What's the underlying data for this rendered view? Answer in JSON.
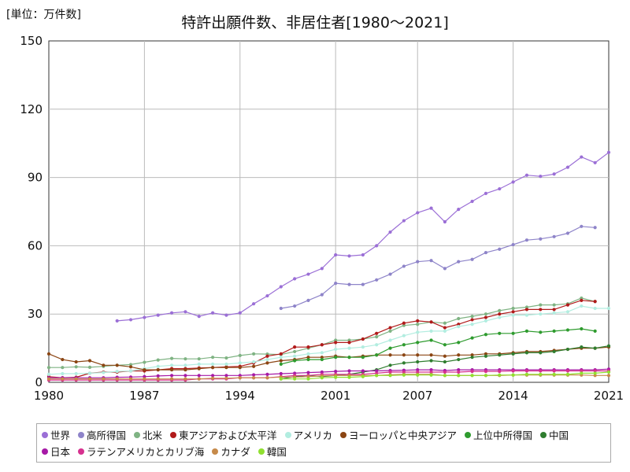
{
  "unit_label": "[単位：万件数]",
  "chart_data": {
    "type": "line",
    "title": "特許出願件数、非居住者[1980～2021]",
    "xlabel": "",
    "ylabel": "",
    "xlim": [
      1980,
      2021
    ],
    "ylim": [
      0,
      150
    ],
    "x_ticks": [
      1980,
      1987,
      1994,
      2001,
      2007,
      2014,
      2021
    ],
    "y_ticks": [
      0,
      30,
      60,
      90,
      120,
      150
    ],
    "grid": true,
    "legend_position": "bottom",
    "series": [
      {
        "name": "世界",
        "color": "#9b6fd6",
        "x": [
          1985,
          1986,
          1987,
          1988,
          1989,
          1990,
          1991,
          1992,
          1993,
          1994,
          1995,
          1996,
          1997,
          1998,
          1999,
          2000,
          2001,
          2002,
          2003,
          2004,
          2005,
          2006,
          2007,
          2008,
          2009,
          2010,
          2011,
          2012,
          2013,
          2014,
          2015,
          2016,
          2017,
          2018,
          2019,
          2020,
          2021
        ],
        "y": [
          27,
          27.5,
          28.5,
          29.5,
          30.5,
          31,
          29,
          30.5,
          29.5,
          30.5,
          34.5,
          38,
          42,
          45.5,
          47.5,
          50,
          56,
          55.5,
          56,
          60,
          66,
          71,
          74.5,
          76.5,
          70.5,
          76,
          79.5,
          83,
          85,
          88,
          91,
          90.5,
          91.5,
          94.5,
          99,
          96.5,
          101
        ]
      },
      {
        "name": "高所得国",
        "color": "#8e84c9",
        "x": [
          1997,
          1998,
          1999,
          2000,
          2001,
          2002,
          2003,
          2004,
          2005,
          2006,
          2007,
          2008,
          2009,
          2010,
          2011,
          2012,
          2013,
          2014,
          2015,
          2016,
          2017,
          2018,
          2019,
          2020
        ],
        "y": [
          32.5,
          33.5,
          36,
          38.5,
          43.5,
          43,
          43,
          45,
          47.5,
          51,
          53,
          53.5,
          50,
          53,
          54,
          57,
          58.5,
          60.5,
          62.5,
          63,
          64,
          65.5,
          68.5,
          68
        ]
      },
      {
        "name": "北米",
        "color": "#7fb383",
        "x": [
          1980,
          1981,
          1982,
          1983,
          1984,
          1985,
          1986,
          1987,
          1988,
          1989,
          1990,
          1991,
          1992,
          1993,
          1994,
          1995,
          1996,
          1997,
          1998,
          1999,
          2000,
          2001,
          2002,
          2003,
          2004,
          2005,
          2006,
          2007,
          2008,
          2009,
          2010,
          2011,
          2012,
          2013,
          2014,
          2015,
          2016,
          2017,
          2018,
          2019,
          2020
        ],
        "y": [
          6.5,
          6.5,
          6.8,
          6.6,
          7,
          7.5,
          7.8,
          8.8,
          9.8,
          10.5,
          10.3,
          10.3,
          11,
          10.7,
          11.8,
          12.5,
          12.4,
          12.2,
          13.5,
          15,
          16.5,
          18.5,
          18.5,
          19,
          20,
          22.5,
          25,
          25.5,
          26.5,
          26,
          28,
          29,
          30,
          31.5,
          32.5,
          33,
          34,
          34,
          34.5,
          37,
          35.5
        ]
      },
      {
        "name": "東アジアおよび太平洋",
        "color": "#b11a1a",
        "x": [
          1980,
          1981,
          1982,
          1983,
          1984,
          1985,
          1986,
          1987,
          1988,
          1989,
          1990,
          1991,
          1992,
          1993,
          1994,
          1995,
          1996,
          1997,
          1998,
          1999,
          2000,
          2001,
          2002,
          2003,
          2004,
          2005,
          2006,
          2007,
          2008,
          2009,
          2010,
          2011,
          2012,
          2013,
          2014,
          2015,
          2016,
          2017,
          2018,
          2019,
          2020
        ],
        "y": [
          2.5,
          2,
          2.2,
          4,
          4.5,
          4.5,
          5,
          5,
          5.5,
          6,
          6,
          6.3,
          6.5,
          6.8,
          7,
          8.5,
          11.5,
          12.5,
          15.5,
          15.5,
          16.5,
          17.5,
          17.5,
          19,
          21.5,
          24,
          26,
          27,
          26.5,
          24,
          25.5,
          27.5,
          28.5,
          30,
          31,
          32,
          32,
          32,
          34,
          36,
          35.5
        ]
      },
      {
        "name": "アメリカ",
        "color": "#b2ede0",
        "x": [
          1980,
          1981,
          1982,
          1983,
          1984,
          1985,
          1986,
          1987,
          1988,
          1989,
          1990,
          1991,
          1992,
          1993,
          1994,
          1995,
          1996,
          1997,
          1998,
          1999,
          2000,
          2001,
          2002,
          2003,
          2004,
          2005,
          2006,
          2007,
          2008,
          2009,
          2010,
          2011,
          2012,
          2013,
          2014,
          2015,
          2016,
          2017,
          2018,
          2019,
          2020,
          2021
        ],
        "y": [
          3.5,
          3.8,
          3.8,
          4,
          4.3,
          4.8,
          5,
          6,
          7,
          7.5,
          7.5,
          8,
          8,
          8,
          8.5,
          9,
          10,
          11,
          11.5,
          12.5,
          13,
          14.5,
          15,
          15.5,
          16.5,
          18.5,
          20.5,
          22,
          22.5,
          22.5,
          24.5,
          25.5,
          27,
          28.5,
          29.5,
          29.5,
          30,
          30.5,
          31,
          33.5,
          32.5,
          32.5
        ]
      },
      {
        "name": "ヨーロッパと中央アジア",
        "color": "#8b4513",
        "x": [
          1980,
          1981,
          1982,
          1983,
          1984,
          1985,
          1986,
          1987,
          1988,
          1989,
          1990,
          1991,
          1992,
          1993,
          1994,
          1995,
          1996,
          1997,
          1998,
          1999,
          2000,
          2001,
          2002,
          2003,
          2004,
          2005,
          2006,
          2007,
          2008,
          2009,
          2010,
          2011,
          2012,
          2013,
          2014,
          2015,
          2016,
          2017,
          2018,
          2019,
          2020,
          2021
        ],
        "y": [
          12.5,
          10,
          9,
          9.5,
          7.5,
          7.5,
          6.8,
          5.5,
          5.5,
          5.5,
          5.5,
          6,
          6.5,
          6.5,
          6.5,
          7,
          8.5,
          9.5,
          10,
          11,
          11,
          11.5,
          11,
          11.5,
          12,
          12,
          12,
          12,
          12,
          11.5,
          12,
          12,
          12.5,
          12.5,
          13,
          13.5,
          13.5,
          14,
          14.5,
          15,
          15,
          15.5
        ]
      },
      {
        "name": "上位中所得国",
        "color": "#2e9b2e",
        "x": [
          1997,
          1998,
          1999,
          2000,
          2001,
          2002,
          2003,
          2004,
          2005,
          2006,
          2007,
          2008,
          2009,
          2010,
          2011,
          2012,
          2013,
          2014,
          2015,
          2016,
          2017,
          2018,
          2019,
          2020
        ],
        "y": [
          8,
          9.5,
          10,
          10,
          11,
          11,
          11,
          12,
          15,
          16.5,
          17.5,
          18.5,
          16.5,
          17.5,
          19.5,
          21,
          21.5,
          21.5,
          22.5,
          22,
          22.5,
          23,
          23.5,
          22.5
        ]
      },
      {
        "name": "中国",
        "color": "#2f7d2f",
        "x": [
          1997,
          1998,
          1999,
          2000,
          2001,
          2002,
          2003,
          2004,
          2005,
          2006,
          2007,
          2008,
          2009,
          2010,
          2011,
          2012,
          2013,
          2014,
          2015,
          2016,
          2017,
          2018,
          2019,
          2020,
          2021
        ],
        "y": [
          1.5,
          2.5,
          3,
          2.5,
          3,
          3.5,
          4.5,
          5.5,
          7.5,
          8.5,
          9,
          9.5,
          9,
          10,
          11,
          11.5,
          12,
          12.5,
          13,
          13,
          13.5,
          14.5,
          15.5,
          15,
          16
        ]
      },
      {
        "name": "日本",
        "color": "#a619a6",
        "x": [
          1980,
          1981,
          1982,
          1983,
          1984,
          1985,
          1986,
          1987,
          1988,
          1989,
          1990,
          1991,
          1992,
          1993,
          1994,
          1995,
          1996,
          1997,
          1998,
          1999,
          2000,
          2001,
          2002,
          2003,
          2004,
          2005,
          2006,
          2007,
          2008,
          2009,
          2010,
          2011,
          2012,
          2013,
          2014,
          2015,
          2016,
          2017,
          2018,
          2019,
          2020,
          2021
        ],
        "y": [
          2,
          2,
          2,
          2,
          2,
          2.2,
          2.3,
          2.5,
          2.8,
          3,
          3,
          3,
          3,
          3,
          3,
          3.3,
          3.5,
          3.8,
          4,
          4.3,
          4.5,
          4.8,
          5,
          5,
          5,
          5.2,
          5.3,
          5.5,
          5.5,
          5.2,
          5.5,
          5.5,
          5.5,
          5.5,
          5.5,
          5.5,
          5.5,
          5.5,
          5.5,
          5.5,
          5.5,
          5.8
        ]
      },
      {
        "name": "ラテンアメリカとカリブ海",
        "color": "#d6318f",
        "x": [
          1980,
          1981,
          1982,
          1983,
          1984,
          1985,
          1986,
          1987,
          1988,
          1989,
          1990,
          1991,
          1992,
          1993,
          1994,
          1995,
          1996,
          1997,
          1998,
          1999,
          2000,
          2001,
          2002,
          2003,
          2004,
          2005,
          2006,
          2007,
          2008,
          2009,
          2010,
          2011,
          2012,
          2013,
          2014,
          2015,
          2016,
          2017,
          2018,
          2019,
          2020,
          2021
        ],
        "y": [
          1,
          1,
          1,
          1,
          1,
          1,
          1,
          1,
          1,
          1,
          1,
          1.5,
          1.5,
          1.5,
          2,
          2,
          2,
          2.5,
          3,
          3,
          3.5,
          3.5,
          3.5,
          3.5,
          4,
          4.5,
          4.5,
          4.5,
          4.5,
          4.5,
          4.5,
          4.8,
          4.8,
          4.8,
          5,
          5,
          5,
          5,
          5,
          5,
          5,
          5
        ]
      },
      {
        "name": "カナダ",
        "color": "#c68a4a",
        "x": [
          1980,
          1981,
          1982,
          1983,
          1984,
          1985,
          1986,
          1987,
          1988,
          1989,
          1990,
          1991,
          1992,
          1993,
          1994,
          1995,
          1996,
          1997,
          1998,
          1999,
          2000,
          2001,
          2002,
          2003,
          2004,
          2005,
          2006,
          2007,
          2008,
          2009,
          2010,
          2011,
          2012,
          2013,
          2014,
          2015,
          2016,
          2017,
          2018,
          2019,
          2020,
          2021
        ],
        "y": [
          1.5,
          1.5,
          1.5,
          1.5,
          1.5,
          1.5,
          1.5,
          1.5,
          1.5,
          1.5,
          1.5,
          1.5,
          1.8,
          1.8,
          2,
          2,
          2,
          2.3,
          2.3,
          2.5,
          2.8,
          3,
          3,
          3,
          3,
          3.3,
          3.5,
          3.5,
          3.5,
          3,
          3,
          3,
          3,
          3,
          3.2,
          3.2,
          3.2,
          3.2,
          3.2,
          3.2,
          3,
          3
        ]
      },
      {
        "name": "韓国",
        "color": "#90e030",
        "x": [
          1997,
          1998,
          1999,
          2000,
          2001,
          2002,
          2003,
          2004,
          2005,
          2006,
          2007,
          2008,
          2009,
          2010,
          2011,
          2012,
          2013,
          2014,
          2015,
          2016,
          2017,
          2018,
          2019,
          2020,
          2021
        ],
        "y": [
          1.5,
          1.5,
          1.5,
          2,
          2.2,
          2.2,
          2.5,
          3,
          3,
          3.2,
          3.2,
          3.2,
          3,
          3,
          3,
          3,
          3.2,
          3.2,
          3.5,
          3.5,
          3.5,
          3.5,
          4,
          4,
          4.5
        ]
      }
    ]
  }
}
